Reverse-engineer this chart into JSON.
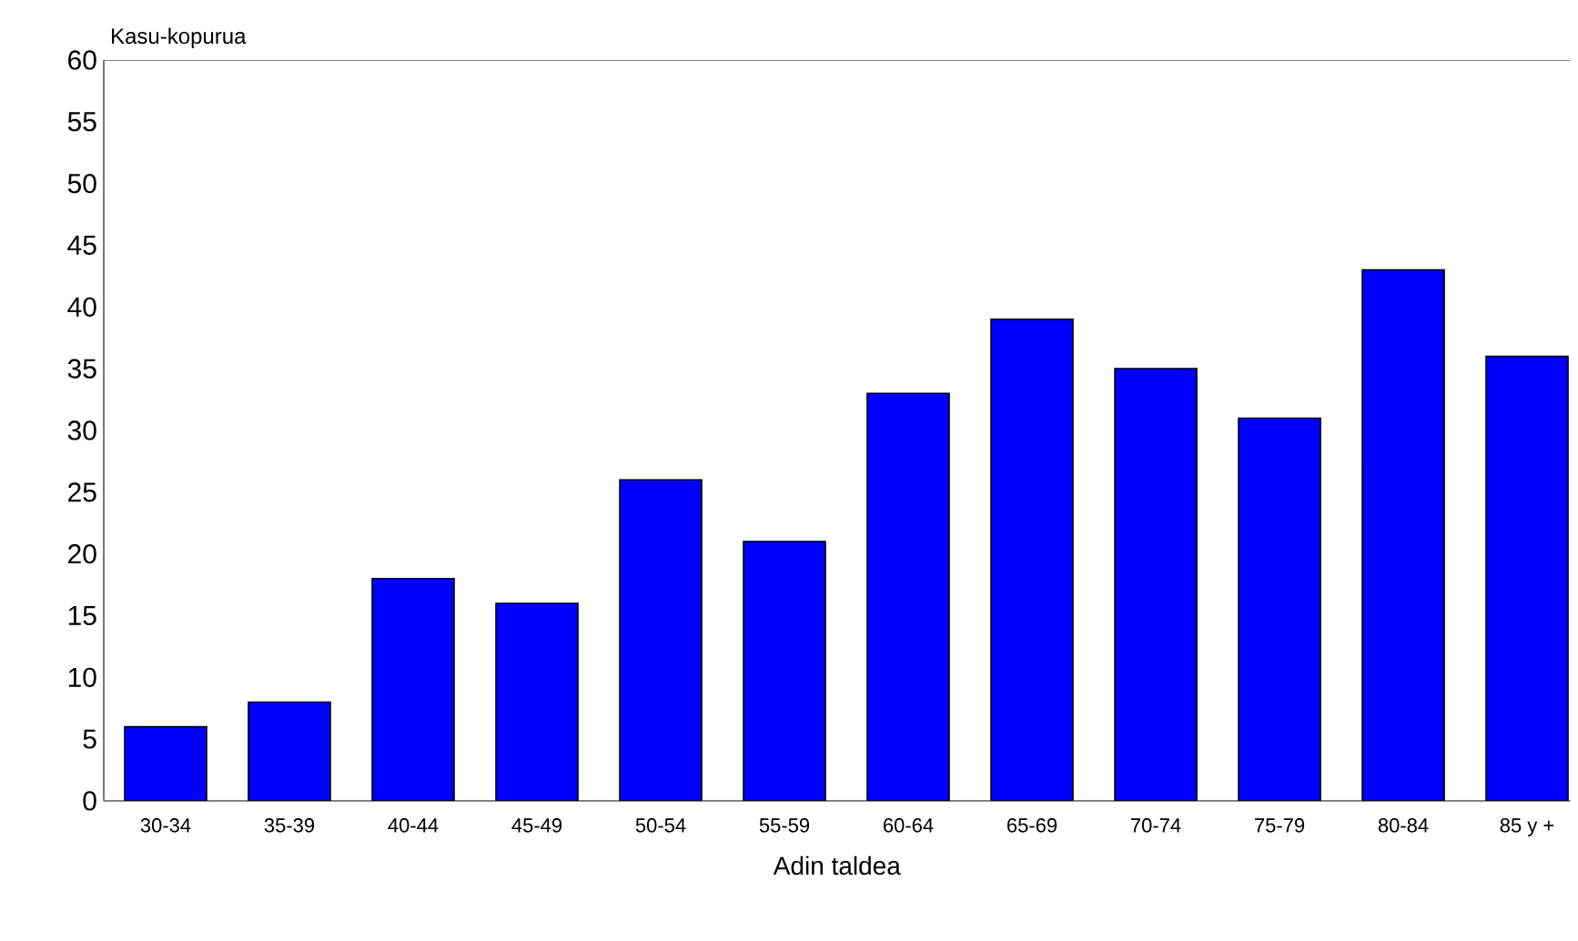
{
  "chart_data": {
    "type": "bar",
    "xlabel": "Adin taldea",
    "ylabel": "Kasu-kopurua",
    "categories": [
      "30-34",
      "35-39",
      "40-44",
      "45-49",
      "50-54",
      "55-59",
      "60-64",
      "65-69",
      "70-74",
      "75-79",
      "80-84",
      "85 y +"
    ],
    "values": [
      6,
      8,
      18,
      16,
      26,
      21,
      33,
      39,
      35,
      31,
      43,
      36
    ],
    "color": "#0000ff",
    "ylim": [
      0,
      60
    ],
    "yticks": [
      0,
      5,
      10,
      15,
      20,
      25,
      30,
      35,
      40,
      45,
      50,
      55,
      60
    ]
  }
}
